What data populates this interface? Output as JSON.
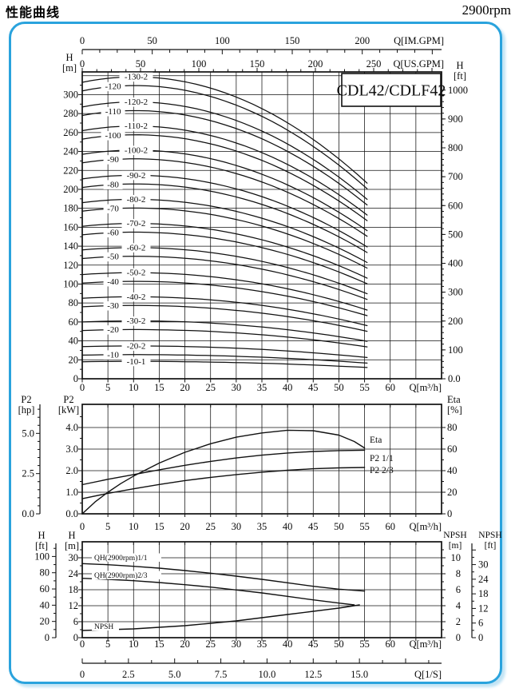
{
  "page": {
    "title": "性能曲线",
    "rpm": "2900rpm",
    "model": "CDL42/CDLF42"
  },
  "colors": {
    "border": "#2aa3dd",
    "border_shadow": "#c2e4f5",
    "ink": "#111111"
  },
  "chart_data": [
    {
      "id": "head_capacity",
      "type": "line",
      "title": "CDL42/CDLF42",
      "x_axis": {
        "unit": "Q[m³/h]",
        "labels": [
          "0",
          "5",
          "10",
          "15",
          "20",
          "25",
          "30",
          "35",
          "40",
          "45",
          "50",
          "55",
          "60"
        ],
        "min": 0,
        "max": 70,
        "grid_step": 5
      },
      "top_axis_imperial": {
        "unit": "Q[IM.GPM]",
        "labels": [
          "0",
          "50",
          "100",
          "150",
          "200"
        ]
      },
      "top_axis_us": {
        "unit": "Q[US.GPM]",
        "labels": [
          "0",
          "50",
          "100",
          "150",
          "200",
          "250"
        ]
      },
      "y_left": {
        "header": [
          "H",
          "[m]"
        ],
        "labels": [
          "0",
          "20",
          "40",
          "60",
          "80",
          "100",
          "120",
          "140",
          "160",
          "180",
          "200",
          "220",
          "240",
          "260",
          "280",
          "300"
        ],
        "min": 0,
        "max": 324,
        "grid_step": 20
      },
      "y_right": {
        "header": [
          "H",
          "[ft]"
        ],
        "labels": [
          "0.0",
          "100",
          "200",
          "300",
          "400",
          "500",
          "600",
          "700",
          "800",
          "900",
          "1000"
        ]
      },
      "curve_shape": {
        "rise": 0.2,
        "droop": 0.54,
        "end_flow_m3h": 55.5,
        "end_head_ratio": 0.66
      },
      "curves": [
        {
          "label": "-130-2",
          "shutoff_head_m": 313,
          "label_col": 2
        },
        {
          "label": "-120",
          "shutoff_head_m": 304,
          "label_col": 1
        },
        {
          "label": "-120-2",
          "shutoff_head_m": 287,
          "label_col": 2
        },
        {
          "label": "-110",
          "shutoff_head_m": 278,
          "label_col": 1
        },
        {
          "label": "-110-2",
          "shutoff_head_m": 262,
          "label_col": 2
        },
        {
          "label": "-100",
          "shutoff_head_m": 253,
          "label_col": 1
        },
        {
          "label": "-100-2",
          "shutoff_head_m": 237,
          "label_col": 2
        },
        {
          "label": "-90",
          "shutoff_head_m": 228,
          "label_col": 1
        },
        {
          "label": "-90-2",
          "shutoff_head_m": 211,
          "label_col": 2
        },
        {
          "label": "-80",
          "shutoff_head_m": 202,
          "label_col": 1
        },
        {
          "label": "-80-2",
          "shutoff_head_m": 186,
          "label_col": 2
        },
        {
          "label": "-70",
          "shutoff_head_m": 177,
          "label_col": 1
        },
        {
          "label": "-70-2",
          "shutoff_head_m": 161,
          "label_col": 2
        },
        {
          "label": "-60",
          "shutoff_head_m": 152,
          "label_col": 1
        },
        {
          "label": "-60-2",
          "shutoff_head_m": 136,
          "label_col": 2
        },
        {
          "label": "-50",
          "shutoff_head_m": 127,
          "label_col": 1
        },
        {
          "label": "-50-2",
          "shutoff_head_m": 110,
          "label_col": 2
        },
        {
          "label": "-40",
          "shutoff_head_m": 101,
          "label_col": 1
        },
        {
          "label": "-40-2",
          "shutoff_head_m": 85,
          "label_col": 2
        },
        {
          "label": "-30",
          "shutoff_head_m": 76,
          "label_col": 1
        },
        {
          "label": "-30-2",
          "shutoff_head_m": 60,
          "label_col": 2
        },
        {
          "label": "-20",
          "shutoff_head_m": 51,
          "label_col": 1
        },
        {
          "label": "-20-2",
          "shutoff_head_m": 34,
          "label_col": 2
        },
        {
          "label": "-10",
          "shutoff_head_m": 25,
          "label_col": 1
        },
        {
          "label": "-10-1",
          "shutoff_head_m": 18,
          "label_col": 2
        }
      ]
    },
    {
      "id": "power_efficiency",
      "type": "line",
      "x_axis": {
        "unit": "Q[m³/h]",
        "labels": [
          "0",
          "5",
          "10",
          "15",
          "20",
          "25",
          "30",
          "35",
          "40",
          "45",
          "50",
          "55",
          "60"
        ],
        "min": 0,
        "max": 70,
        "grid_step": 5
      },
      "y_left_outer": {
        "header": [
          "P2",
          "[hp]"
        ],
        "labels": [
          "0.0",
          "2.5",
          "5.0"
        ]
      },
      "y_left_inner": {
        "header": [
          "P2",
          "[kW]"
        ],
        "labels": [
          "0.0",
          "1.0",
          "2.0",
          "3.0",
          "4.0"
        ]
      },
      "y_right": {
        "header": [
          "Eta",
          "[%]"
        ],
        "labels": [
          "0",
          "20",
          "40",
          "60",
          "80"
        ]
      },
      "series": [
        {
          "label": "Eta",
          "unit": "%",
          "points": [
            [
              0,
              0
            ],
            [
              2.5,
              11
            ],
            [
              5,
              20
            ],
            [
              7.5,
              28
            ],
            [
              10,
              35
            ],
            [
              15,
              47
            ],
            [
              20,
              57
            ],
            [
              25,
              65
            ],
            [
              30,
              71
            ],
            [
              35,
              75
            ],
            [
              40,
              77.5
            ],
            [
              45,
              77
            ],
            [
              50,
              73
            ],
            [
              53,
              67
            ],
            [
              55,
              61
            ]
          ]
        },
        {
          "label": "P2  1/1",
          "unit": "kW",
          "points": [
            [
              0,
              1.35
            ],
            [
              5,
              1.6
            ],
            [
              10,
              1.82
            ],
            [
              15,
              2.04
            ],
            [
              20,
              2.25
            ],
            [
              25,
              2.43
            ],
            [
              30,
              2.59
            ],
            [
              35,
              2.72
            ],
            [
              40,
              2.82
            ],
            [
              45,
              2.89
            ],
            [
              50,
              2.93
            ],
            [
              55,
              2.95
            ]
          ]
        },
        {
          "label": "P2  2/3",
          "unit": "kW",
          "points": [
            [
              0,
              0.7
            ],
            [
              5,
              0.95
            ],
            [
              10,
              1.16
            ],
            [
              15,
              1.36
            ],
            [
              20,
              1.54
            ],
            [
              25,
              1.69
            ],
            [
              30,
              1.82
            ],
            [
              35,
              1.93
            ],
            [
              40,
              2.02
            ],
            [
              45,
              2.09
            ],
            [
              50,
              2.13
            ],
            [
              55,
              2.15
            ]
          ]
        }
      ]
    },
    {
      "id": "qh_npsh",
      "type": "line",
      "x_axis": {
        "unit": "Q[m³/h]",
        "labels": [
          "0",
          "5",
          "10",
          "15",
          "20",
          "25",
          "30",
          "35",
          "40",
          "45",
          "50",
          "55",
          "60"
        ],
        "min": 0,
        "max": 70,
        "grid_step": 5
      },
      "x_axis_ls": {
        "unit": "Q[1/S]",
        "labels": [
          "0",
          "2.5",
          "5.0",
          "7.5",
          "10.0",
          "12.5",
          "15.0"
        ]
      },
      "y_left_outer": {
        "header": [
          "H",
          "[ft]"
        ],
        "labels": [
          "0",
          "20",
          "40",
          "60",
          "80",
          "100"
        ]
      },
      "y_left_inner": {
        "header": [
          "H",
          "[m]"
        ],
        "labels": [
          "0",
          "6",
          "12",
          "18",
          "24",
          "30"
        ]
      },
      "y_right_inner": {
        "header": [
          "NPSH",
          "[m]"
        ],
        "labels": [
          "0",
          "2",
          "4",
          "6",
          "8",
          "10"
        ]
      },
      "y_right_outer": {
        "header": [
          "NPSH",
          "[ft]"
        ],
        "labels": [
          "0",
          "6",
          "12",
          "18",
          "24",
          "30"
        ]
      },
      "series": [
        {
          "label": "QH(2900rpm)1/1",
          "unit": "m",
          "points": [
            [
              0,
              27.8
            ],
            [
              5,
              27.4
            ],
            [
              10,
              26.8
            ],
            [
              15,
              26.1
            ],
            [
              20,
              25.2
            ],
            [
              25,
              24.2
            ],
            [
              30,
              23.1
            ],
            [
              35,
              21.9
            ],
            [
              40,
              20.6
            ],
            [
              45,
              19.3
            ],
            [
              50,
              18.2
            ],
            [
              55,
              17.5
            ]
          ]
        },
        {
          "label": "QH(2900rpm)2/3",
          "unit": "m",
          "points": [
            [
              0,
              22.3
            ],
            [
              5,
              21.9
            ],
            [
              10,
              21.4
            ],
            [
              15,
              20.7
            ],
            [
              20,
              19.9
            ],
            [
              25,
              19.0
            ],
            [
              30,
              17.9
            ],
            [
              35,
              16.8
            ],
            [
              40,
              15.5
            ],
            [
              45,
              14.2
            ],
            [
              50,
              13.0
            ],
            [
              53,
              12.3
            ]
          ]
        },
        {
          "label": "NPSH",
          "unit": "m",
          "points": [
            [
              0,
              0.9
            ],
            [
              5,
              1.0
            ],
            [
              10,
              1.1
            ],
            [
              15,
              1.3
            ],
            [
              20,
              1.5
            ],
            [
              25,
              1.8
            ],
            [
              30,
              2.1
            ],
            [
              35,
              2.5
            ],
            [
              40,
              2.9
            ],
            [
              45,
              3.3
            ],
            [
              50,
              3.7
            ],
            [
              54,
              4.1
            ]
          ]
        }
      ]
    }
  ]
}
